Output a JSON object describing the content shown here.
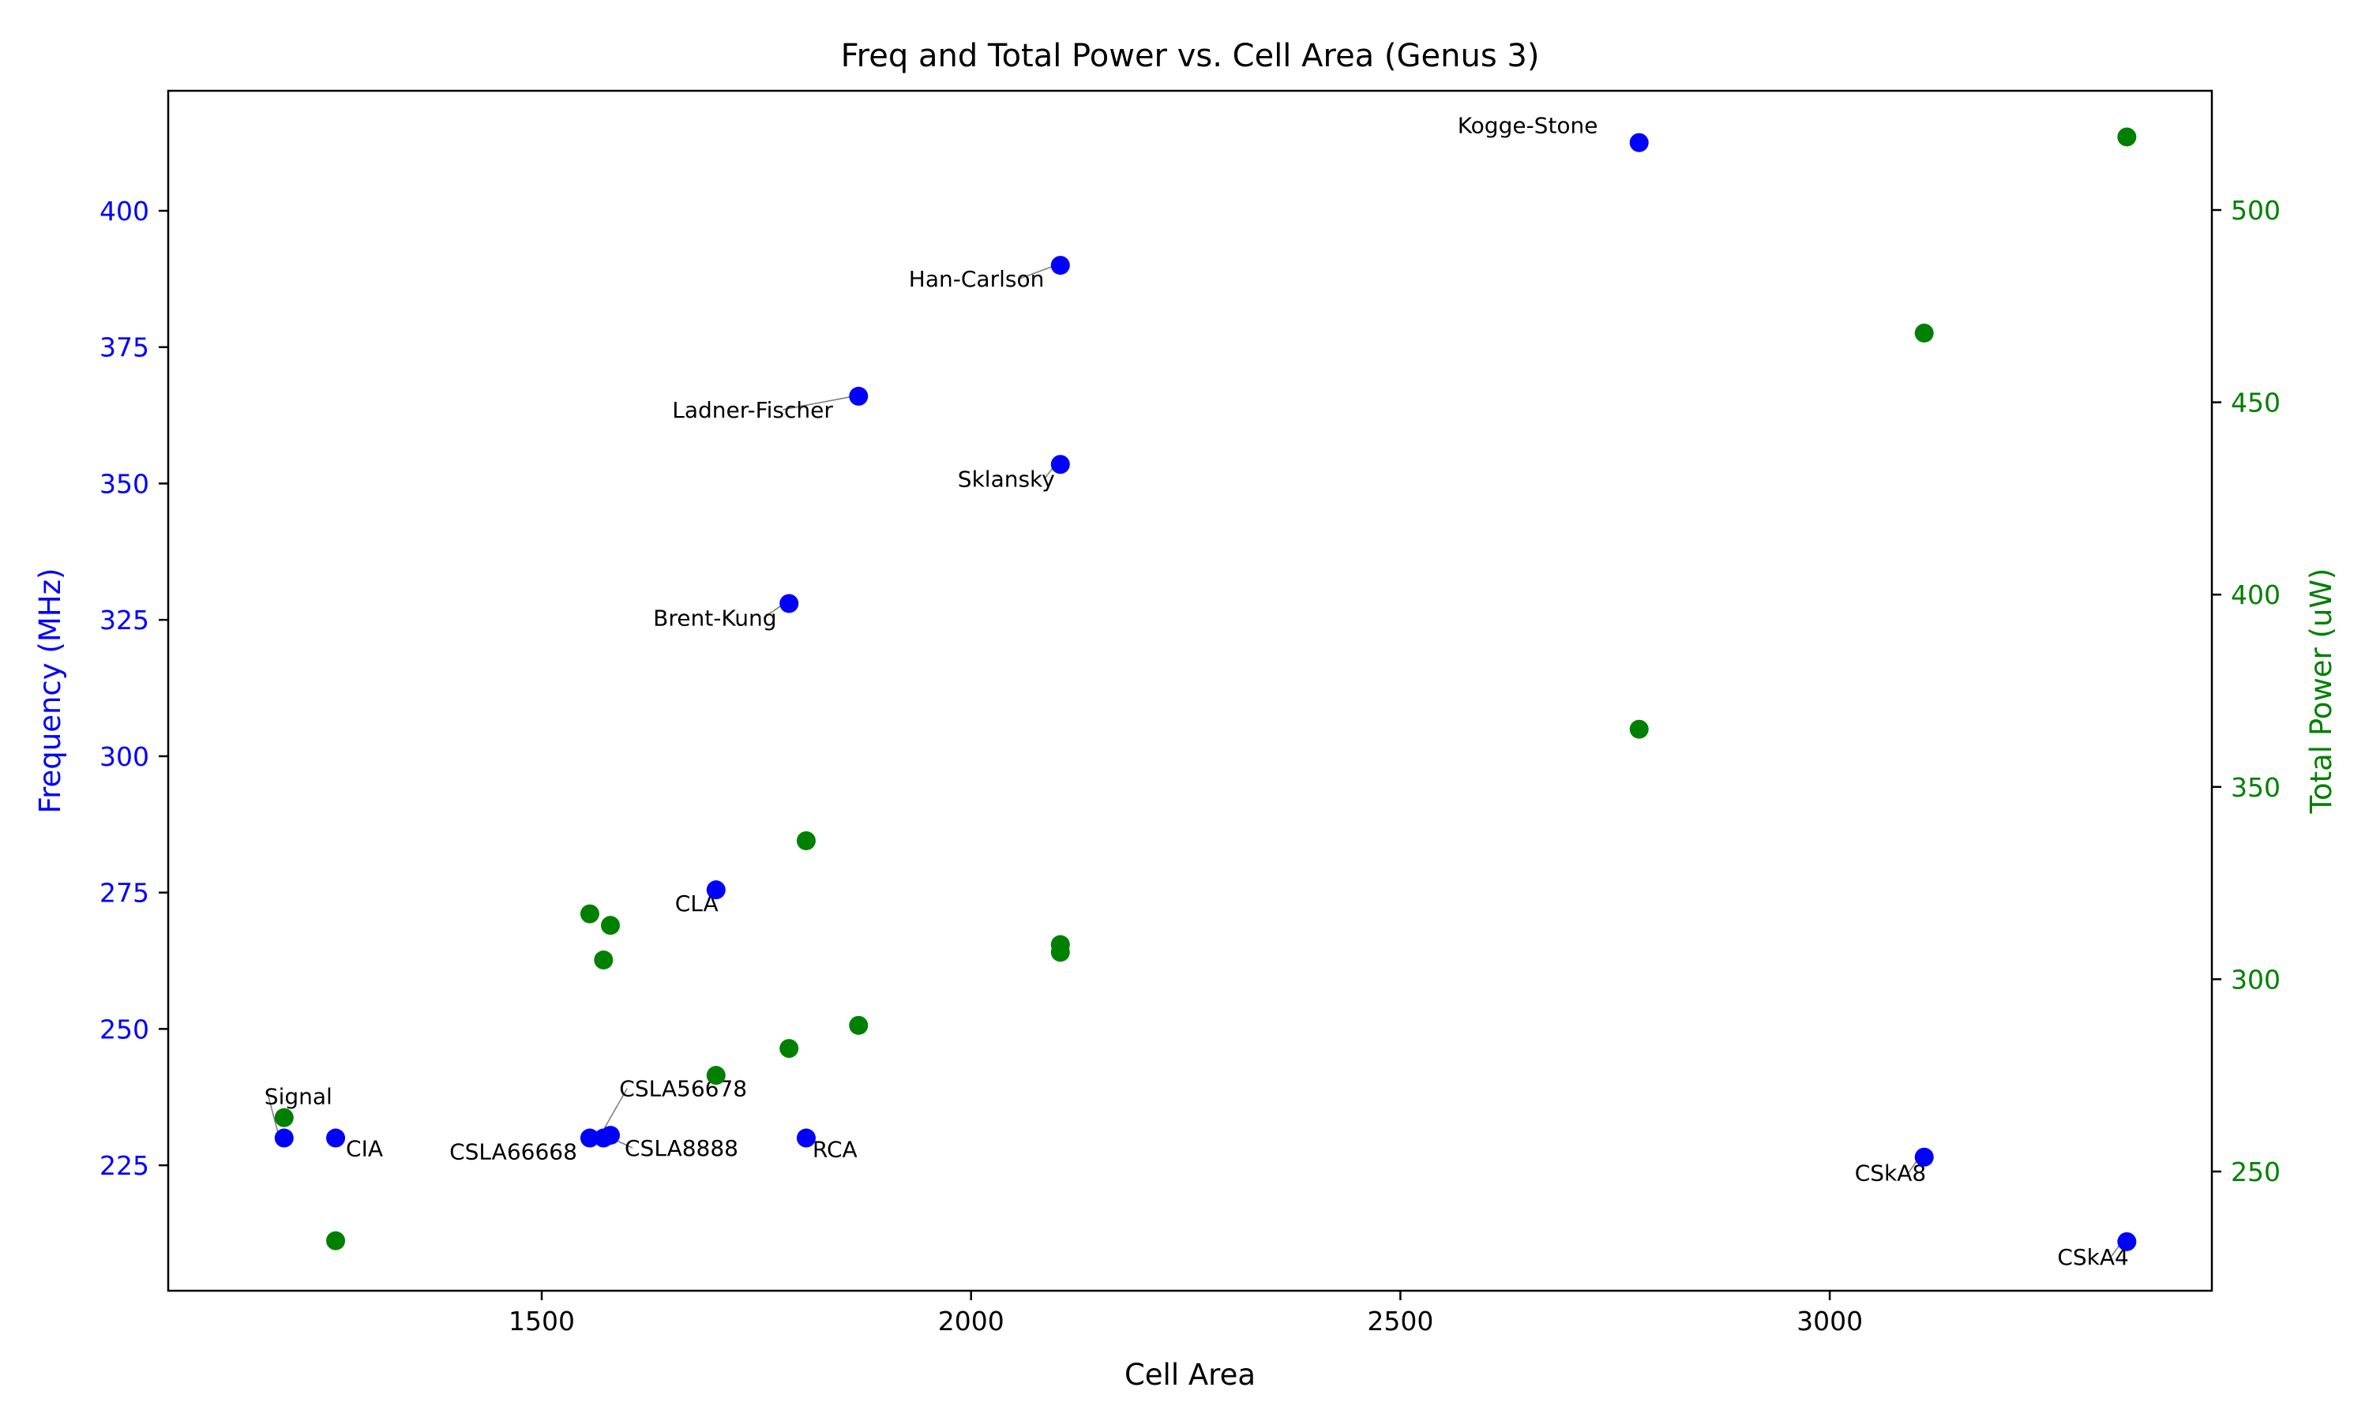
{
  "chart_data": {
    "type": "scatter",
    "title": "Freq and Total Power vs. Cell Area (Genus 3)",
    "xlabel": "Cell Area",
    "ylabel": "Frequency (MHz)",
    "y2label": "Total Power (uW)",
    "xlim": [
      1065,
      3445
    ],
    "ylim": [
      202,
      422
    ],
    "y2lim": [
      219,
      531
    ],
    "xticks": [
      1500,
      2000,
      2500,
      3000
    ],
    "yticks": [
      225,
      250,
      275,
      300,
      325,
      350,
      375,
      400
    ],
    "y2ticks": [
      250,
      300,
      350,
      400,
      450,
      500
    ],
    "grid": false,
    "colors": {
      "frequency": "#0000ff",
      "power": "#008000",
      "axis": "#000000"
    },
    "series": [
      {
        "axis": "left",
        "color": "#0000ff",
        "points": [
          {
            "label": "Signal",
            "x": 1200,
            "y": 230
          },
          {
            "label": "CIA",
            "x": 1260,
            "y": 230
          },
          {
            "label": "CSLA66668",
            "x": 1556,
            "y": 230
          },
          {
            "label": "CSLA56678",
            "x": 1572,
            "y": 230
          },
          {
            "label": "CSLA8888",
            "x": 1580,
            "y": 230.5
          },
          {
            "label": "CLA",
            "x": 1703,
            "y": 275.5
          },
          {
            "label": "Brent-Kung",
            "x": 1788,
            "y": 328
          },
          {
            "label": "RCA",
            "x": 1808,
            "y": 230
          },
          {
            "label": "Ladner-Fischer",
            "x": 1869,
            "y": 366
          },
          {
            "label": "Han-Carlson",
            "x": 2104,
            "y": 390
          },
          {
            "label": "Sklansky",
            "x": 2104,
            "y": 353.5
          },
          {
            "label": "Kogge-Stone",
            "x": 2778,
            "y": 412.5
          },
          {
            "label": "CSkA8",
            "x": 3110,
            "y": 226.5
          },
          {
            "label": "CSkA4",
            "x": 3346,
            "y": 211
          }
        ]
      },
      {
        "axis": "right",
        "color": "#008000",
        "points": [
          {
            "x": 1200,
            "y": 264
          },
          {
            "x": 1260,
            "y": 232
          },
          {
            "x": 1556,
            "y": 317
          },
          {
            "x": 1572,
            "y": 305
          },
          {
            "x": 1580,
            "y": 314
          },
          {
            "x": 1703,
            "y": 275
          },
          {
            "x": 1788,
            "y": 282
          },
          {
            "x": 1808,
            "y": 336
          },
          {
            "x": 1869,
            "y": 288
          },
          {
            "x": 2104,
            "y": 307
          },
          {
            "x": 2104,
            "y": 309
          },
          {
            "x": 2778,
            "y": 365
          },
          {
            "x": 3110,
            "y": 468
          },
          {
            "x": 3346,
            "y": 519
          }
        ]
      }
    ]
  }
}
